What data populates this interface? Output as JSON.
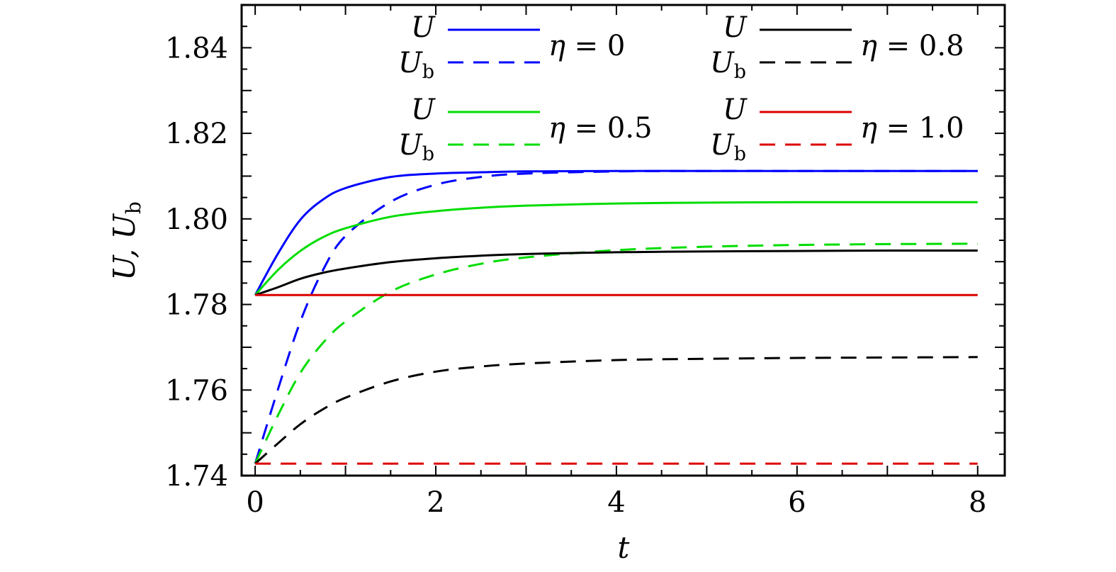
{
  "chart_data": {
    "type": "line",
    "xlabel": "t",
    "ylabel": "U, U_b",
    "xlim": [
      -0.15,
      8.3
    ],
    "ylim": [
      1.74,
      1.85
    ],
    "xticks": [
      "0",
      "2",
      "4",
      "6",
      "8"
    ],
    "yticks": [
      "1.74",
      "1.76",
      "1.78",
      "1.80",
      "1.82",
      "1.84"
    ],
    "grid": false,
    "legend_placement": "top",
    "x": [
      0,
      0.25,
      0.5,
      0.75,
      1,
      1.5,
      2,
      2.5,
      3,
      4,
      5,
      6,
      7,
      8
    ],
    "series": [
      {
        "name": "U",
        "group": "η = 0",
        "color": "#0000ff",
        "style": "solid",
        "values": [
          1.7822,
          1.7918,
          1.7998,
          1.8045,
          1.8072,
          1.8098,
          1.8106,
          1.8109,
          1.8111,
          1.8112,
          1.8112,
          1.8112,
          1.8112,
          1.8112
        ]
      },
      {
        "name": "U_b",
        "group": "η = 0",
        "color": "#0000ff",
        "style": "dashed",
        "values": [
          1.7428,
          1.76,
          1.776,
          1.788,
          1.796,
          1.804,
          1.808,
          1.8098,
          1.8106,
          1.8111,
          1.8112,
          1.8112,
          1.8112,
          1.8112
        ]
      },
      {
        "name": "U",
        "group": "η = 0.5",
        "color": "#00dd00",
        "style": "solid",
        "values": [
          1.7822,
          1.788,
          1.7925,
          1.7957,
          1.7978,
          1.8005,
          1.8018,
          1.8026,
          1.8031,
          1.8036,
          1.8038,
          1.8039,
          1.8039,
          1.8039
        ]
      },
      {
        "name": "U_b",
        "group": "η = 0.5",
        "color": "#00dd00",
        "style": "dashed",
        "values": [
          1.7428,
          1.754,
          1.764,
          1.771,
          1.776,
          1.783,
          1.787,
          1.7895,
          1.791,
          1.7927,
          1.7935,
          1.7939,
          1.7941,
          1.7942
        ]
      },
      {
        "name": "U",
        "group": "η = 0.8",
        "color": "#000000",
        "style": "solid",
        "values": [
          1.7822,
          1.784,
          1.786,
          1.7874,
          1.7884,
          1.7899,
          1.7908,
          1.7914,
          1.7918,
          1.7922,
          1.7924,
          1.7925,
          1.7926,
          1.7926
        ]
      },
      {
        "name": "U_b",
        "group": "η = 0.8",
        "color": "#000000",
        "style": "dashed",
        "values": [
          1.7428,
          1.7475,
          1.752,
          1.7555,
          1.7582,
          1.762,
          1.7643,
          1.7655,
          1.7662,
          1.767,
          1.7673,
          1.7675,
          1.7676,
          1.7677
        ]
      },
      {
        "name": "U",
        "group": "η = 1.0",
        "color": "#dd0000",
        "style": "solid",
        "values": [
          1.7822,
          1.7822,
          1.7822,
          1.7822,
          1.7822,
          1.7822,
          1.7822,
          1.7822,
          1.7822,
          1.7822,
          1.7822,
          1.7822,
          1.7822,
          1.7822
        ]
      },
      {
        "name": "U_b",
        "group": "η = 1.0",
        "color": "#dd0000",
        "style": "dashed",
        "values": [
          1.7428,
          1.7428,
          1.7428,
          1.7428,
          1.7428,
          1.7428,
          1.7428,
          1.7428,
          1.7428,
          1.7428,
          1.7428,
          1.7428,
          1.7428,
          1.7428
        ]
      }
    ],
    "legend": [
      {
        "label": "η = 0",
        "eta_value": "0",
        "color": "#0000ff"
      },
      {
        "label": "η = 0.8",
        "eta_value": "0.8",
        "color": "#000000"
      },
      {
        "label": "η = 0.5",
        "eta_value": "0.5",
        "color": "#00dd00"
      },
      {
        "label": "η = 1.0",
        "eta_value": "1.0",
        "color": "#dd0000"
      }
    ]
  }
}
